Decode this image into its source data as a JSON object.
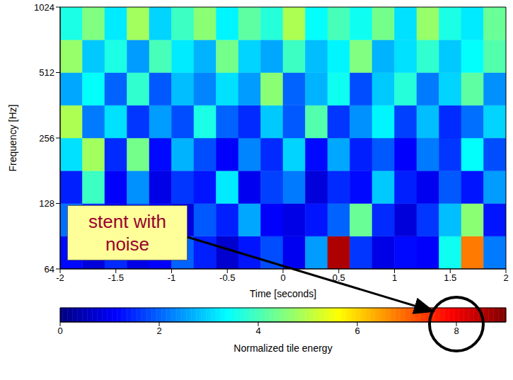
{
  "chart_data": {
    "type": "heatmap",
    "xlabel": "Time [seconds]",
    "ylabel": "Frequency [Hz]",
    "log": "y",
    "xlim": [
      -2,
      2
    ],
    "xticks": [
      -2,
      -1.5,
      -1,
      -0.5,
      0,
      0.5,
      1,
      1.5,
      2
    ],
    "ylim": [
      64,
      1024
    ],
    "yticks": [
      64,
      128,
      256,
      512,
      1024
    ],
    "time_edges": [
      -2,
      -1.8,
      -1.6,
      -1.4,
      -1.2,
      -1,
      -0.8,
      -0.6,
      -0.4,
      -0.2,
      0,
      0.2,
      0.4,
      0.6,
      0.8,
      1,
      1.2,
      1.4,
      1.6,
      1.8,
      2
    ],
    "frequency_edges": [
      64,
      90.51,
      128,
      181.02,
      256,
      362.04,
      512,
      724.08,
      1024
    ],
    "cells": [
      [
        1.2,
        0.8,
        1.5,
        0.9,
        1.1,
        2.0,
        1.4,
        0.7,
        1.3,
        1.8,
        1.0,
        2.5,
        8.6,
        1.6,
        0.9,
        1.2,
        1.1,
        3.5,
        6.8,
        2.2
      ],
      [
        2.1,
        1.5,
        0.9,
        1.7,
        1.2,
        0.8,
        1.9,
        1.4,
        2.6,
        1.1,
        0.9,
        1.3,
        2.0,
        4.3,
        1.5,
        0.8,
        1.6,
        2.8,
        4.6,
        1.3
      ],
      [
        1.4,
        3.9,
        1.1,
        2.4,
        0.9,
        1.6,
        1.3,
        3.2,
        1.0,
        1.7,
        2.2,
        0.8,
        1.5,
        1.2,
        2.9,
        1.4,
        1.0,
        1.9,
        1.3,
        2.5
      ],
      [
        3.1,
        4.8,
        1.5,
        4.4,
        1.2,
        2.7,
        1.8,
        1.1,
        2.3,
        1.5,
        3.0,
        1.2,
        2.6,
        1.4,
        1.9,
        1.1,
        2.2,
        1.6,
        3.4,
        1.8
      ],
      [
        4.9,
        2.2,
        3.1,
        1.6,
        2.5,
        1.8,
        3.6,
        2.0,
        1.5,
        2.9,
        1.9,
        4.1,
        1.6,
        2.4,
        3.3,
        1.7,
        2.8,
        1.5,
        2.1,
        3.0
      ],
      [
        2.6,
        3.4,
        2.0,
        3.8,
        1.9,
        2.8,
        2.3,
        3.1,
        2.5,
        4.6,
        2.0,
        2.7,
        3.5,
        1.8,
        2.9,
        3.7,
        2.2,
        3.0,
        4.2,
        2.4
      ],
      [
        4.7,
        2.9,
        3.6,
        2.5,
        4.0,
        3.2,
        2.7,
        4.4,
        3.0,
        2.6,
        3.9,
        2.8,
        3.3,
        4.5,
        2.7,
        3.1,
        3.8,
        2.9,
        3.4,
        4.1
      ],
      [
        3.6,
        4.5,
        3.2,
        4.8,
        3.0,
        3.9,
        4.6,
        3.3,
        4.2,
        3.7,
        4.9,
        3.4,
        4.0,
        3.5,
        4.4,
        3.1,
        4.7,
        3.6,
        3.2,
        4.3
      ]
    ],
    "colorbar": {
      "label": "Normalized tile energy",
      "range": [
        0,
        9
      ],
      "ticks": [
        0,
        2,
        4,
        6,
        8
      ]
    },
    "annotations": [
      {
        "lines": [
          "stent with",
          "noise"
        ]
      }
    ]
  }
}
